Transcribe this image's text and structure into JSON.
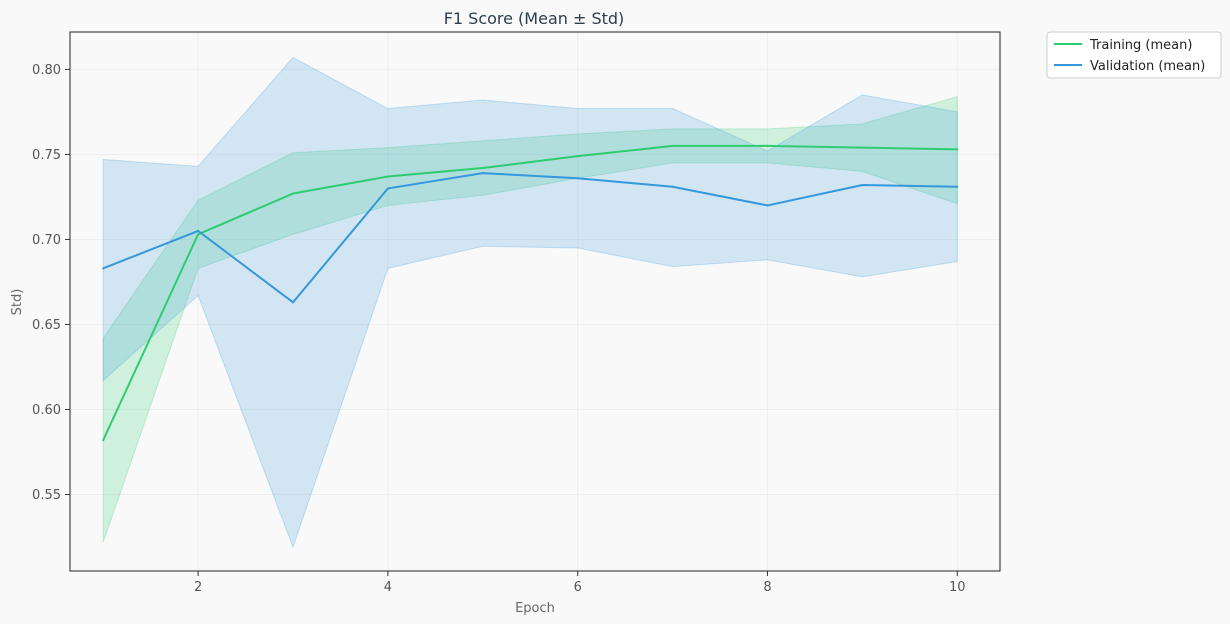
{
  "chart_data": {
    "type": "line",
    "title": "F1 Score (Mean ± Std)",
    "xlabel": "Epoch",
    "ylabel": "Std)",
    "x": [
      1,
      2,
      3,
      4,
      5,
      6,
      7,
      8,
      9,
      10
    ],
    "xlim": [
      0.65,
      10.45
    ],
    "ylim": [
      0.505,
      0.822
    ],
    "xticks": [
      2,
      4,
      6,
      8,
      10
    ],
    "yticks": [
      0.55,
      0.6,
      0.65,
      0.7,
      0.75,
      0.8
    ],
    "ytick_labels": [
      "0.55",
      "0.60",
      "0.65",
      "0.70",
      "0.75",
      "0.80"
    ],
    "grid": true,
    "legend_position": "outside-top-right",
    "series": [
      {
        "name": "Training (mean)",
        "color": "#2ecc71",
        "mean": [
          0.582,
          0.703,
          0.727,
          0.737,
          0.742,
          0.749,
          0.755,
          0.755,
          0.754,
          0.753
        ],
        "upper": [
          0.642,
          0.723,
          0.751,
          0.754,
          0.758,
          0.762,
          0.765,
          0.765,
          0.768,
          0.784
        ],
        "lower": [
          0.522,
          0.683,
          0.703,
          0.72,
          0.726,
          0.736,
          0.745,
          0.745,
          0.74,
          0.721
        ]
      },
      {
        "name": "Validation (mean)",
        "color": "#3498db",
        "mean": [
          0.683,
          0.705,
          0.663,
          0.73,
          0.739,
          0.736,
          0.731,
          0.72,
          0.732,
          0.731
        ],
        "upper": [
          0.747,
          0.743,
          0.807,
          0.777,
          0.782,
          0.777,
          0.777,
          0.752,
          0.785,
          0.775
        ],
        "lower": [
          0.617,
          0.667,
          0.519,
          0.683,
          0.696,
          0.695,
          0.684,
          0.688,
          0.678,
          0.687
        ]
      }
    ]
  }
}
